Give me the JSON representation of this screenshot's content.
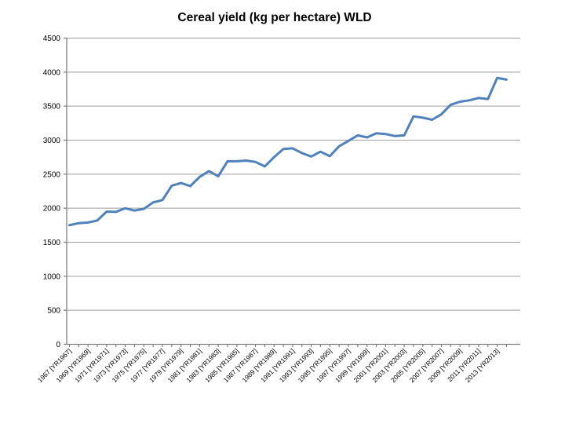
{
  "chart_data": {
    "type": "line",
    "title": "Cereal yield (kg per hectare) WLD",
    "xlabel": "",
    "ylabel": "",
    "legend": "none",
    "grid": "horizontal",
    "ylim": [
      0,
      4500
    ],
    "y_tick_step": 500,
    "y_tick_labels": [
      "0",
      "500",
      "1000",
      "1500",
      "2000",
      "2500",
      "3000",
      "3500",
      "4000",
      "4500"
    ],
    "x": [
      1967,
      1968,
      1969,
      1970,
      1971,
      1972,
      1973,
      1974,
      1975,
      1976,
      1977,
      1978,
      1979,
      1980,
      1981,
      1982,
      1983,
      1984,
      1985,
      1986,
      1987,
      1988,
      1989,
      1990,
      1991,
      1992,
      1993,
      1994,
      1995,
      1996,
      1997,
      1998,
      1999,
      2000,
      2001,
      2002,
      2003,
      2004,
      2005,
      2006,
      2007,
      2008,
      2009,
      2010,
      2011,
      2012,
      2013,
      2014
    ],
    "x_tick_labels": [
      "1967 [YR1967]",
      "1969 [YR1969]",
      "1971 [YR1971]",
      "1973 [YR1973]",
      "1975 [YR1975]",
      "1977 [YR1977]",
      "1979 [YR1979]",
      "1981 [YR1981]",
      "1983 [YR1983]",
      "1985 [YR1985]",
      "1987 [YR1987]",
      "1989 [YR1989]",
      "1991 [YR1991]",
      "1993 [YR1993]",
      "1995 [YR1995]",
      "1997 [YR1997]",
      "1999 [YR1999]",
      "2001 [YR2001]",
      "2003 [YR2003]",
      "2005 [YR2005]",
      "2007 [YR2007]",
      "2009 [YR2009]",
      "2011 [YR2011]",
      "2013 [YR2013]"
    ],
    "x_label_every": 2,
    "series": [
      {
        "name": "Cereal yield WLD",
        "values": [
          1750,
          1780,
          1790,
          1820,
          1950,
          1945,
          2000,
          1965,
          1990,
          2085,
          2120,
          2330,
          2370,
          2325,
          2460,
          2545,
          2470,
          2690,
          2690,
          2700,
          2680,
          2615,
          2750,
          2870,
          2880,
          2810,
          2760,
          2830,
          2765,
          2910,
          2990,
          3070,
          3040,
          3100,
          3090,
          3060,
          3070,
          3350,
          3330,
          3300,
          3380,
          3520,
          3565,
          3585,
          3620,
          3605,
          3915,
          3890
        ]
      }
    ],
    "colors": {
      "line": "#4F81BD",
      "gridline": "#9E9E9E",
      "axis": "#808080",
      "text": "#000000",
      "background": "#FFFFFF"
    }
  }
}
